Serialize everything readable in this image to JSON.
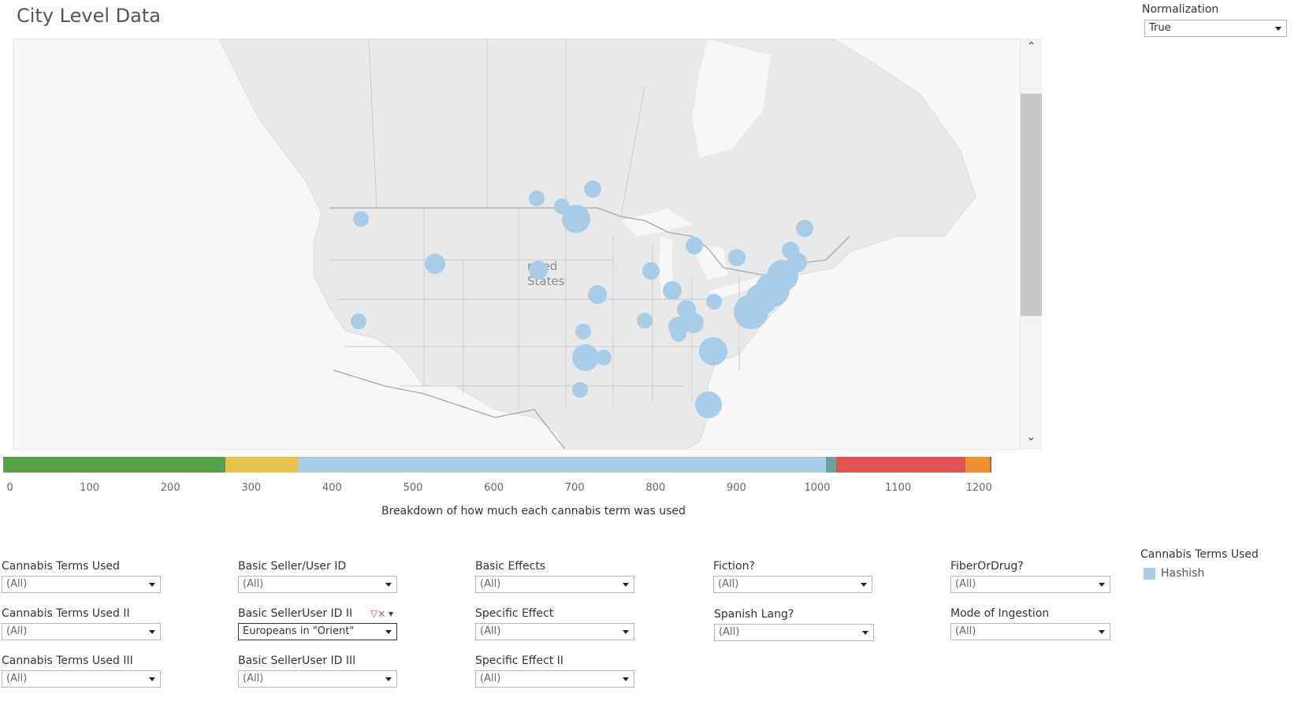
{
  "page": {
    "title": "City Level Data"
  },
  "normalization": {
    "label": "Normalization",
    "value": "True"
  },
  "map": {
    "country_label_line1": "nited",
    "country_label_line2": "States",
    "bubble_color": "#a8cde9",
    "land_color": "#e9e9e9",
    "border_color": "#b9b9b9"
  },
  "scroll": {
    "up_icon": "chevron-up-icon",
    "down_icon": "chevron-down-icon"
  },
  "breakdown_bar": {
    "caption": "Breakdown of how much each cannabis term was used",
    "ticks": [
      "0",
      "100",
      "200",
      "300",
      "400",
      "500",
      "600",
      "700",
      "800",
      "900",
      "1000",
      "1100",
      "1200"
    ],
    "segments": [
      {
        "start": 0,
        "end": 275,
        "color": "#58a146"
      },
      {
        "start": 275,
        "end": 365,
        "color": "#e8c34c"
      },
      {
        "start": 365,
        "end": 1018,
        "color": "#a8cde9"
      },
      {
        "start": 1018,
        "end": 1030,
        "color": "#6aa39a"
      },
      {
        "start": 1030,
        "end": 1190,
        "color": "#e05353"
      },
      {
        "start": 1190,
        "end": 1220,
        "color": "#ef8f2e"
      },
      {
        "start": 1220,
        "end": 1222,
        "color": "#8c6d5a"
      }
    ]
  },
  "filters": {
    "cannabis_terms_used": {
      "label": "Cannabis Terms Used",
      "value": "(All)"
    },
    "cannabis_terms_used_ii": {
      "label": "Cannabis Terms Used II",
      "value": "(All)"
    },
    "cannabis_terms_used_iii": {
      "label": "Cannabis Terms Used III",
      "value": "(All)"
    },
    "basic_seller_user_id": {
      "label": "Basic Seller/User ID",
      "value": "(All)"
    },
    "basic_seller_user_id_ii": {
      "label": "Basic SellerUser ID II",
      "value": "Europeans in \"Orient\""
    },
    "basic_seller_user_id_iii": {
      "label": "Basic SellerUser ID III",
      "value": "(All)"
    },
    "basic_effects": {
      "label": "Basic Effects",
      "value": "(All)"
    },
    "specific_effect": {
      "label": "Specific Effect",
      "value": "(All)"
    },
    "specific_effect_ii": {
      "label": "Specific Effect II",
      "value": "(All)"
    },
    "fiction": {
      "label": "Fiction?",
      "value": "(All)"
    },
    "spanish_lang": {
      "label": "Spanish Lang?",
      "value": "(All)"
    },
    "fiber_or_drug": {
      "label": "FiberOrDrug?",
      "value": "(All)"
    },
    "mode_of_ingestion": {
      "label": "Mode of Ingestion",
      "value": "(All)"
    }
  },
  "legend": {
    "title": "Cannabis Terms Used",
    "items": [
      {
        "label": "Hashish",
        "color": "#a8cde9"
      }
    ]
  }
}
